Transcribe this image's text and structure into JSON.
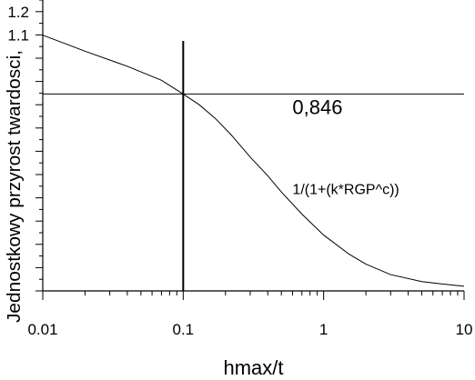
{
  "chart_data": {
    "type": "line",
    "x_scale": "log",
    "xlim": [
      0.01,
      10
    ],
    "ylim": [
      0,
      1.25
    ],
    "xlabel": "hmax/t",
    "ylabel": "Jednostkowy przyrost twardosci,",
    "x_ticks": [
      {
        "value": 0.01,
        "label": "0.01"
      },
      {
        "value": 0.1,
        "label": "0.1"
      },
      {
        "value": 1,
        "label": "1"
      },
      {
        "value": 10,
        "label": "10"
      }
    ],
    "y_ticks": [
      {
        "value": 1.1,
        "label": "1.1"
      },
      {
        "value": 1.2,
        "label": "1.2"
      }
    ],
    "series": [
      {
        "name": "1/(1+(k*RGP^c))",
        "x": [
          0.01,
          0.02,
          0.04,
          0.07,
          0.1,
          0.13,
          0.17,
          0.22,
          0.3,
          0.4,
          0.5,
          0.7,
          1.0,
          1.5,
          2.0,
          3.0,
          5.0,
          7.0,
          10.0
        ],
        "y": [
          1.099,
          1.03,
          0.965,
          0.905,
          0.846,
          0.8,
          0.74,
          0.67,
          0.575,
          0.495,
          0.425,
          0.33,
          0.24,
          0.16,
          0.115,
          0.07,
          0.04,
          0.03,
          0.02
        ]
      }
    ],
    "reference_lines": {
      "vertical_x": 0.1,
      "horizontal_y": 0.846,
      "label": "0,846"
    },
    "grid": false,
    "legend": "none"
  }
}
